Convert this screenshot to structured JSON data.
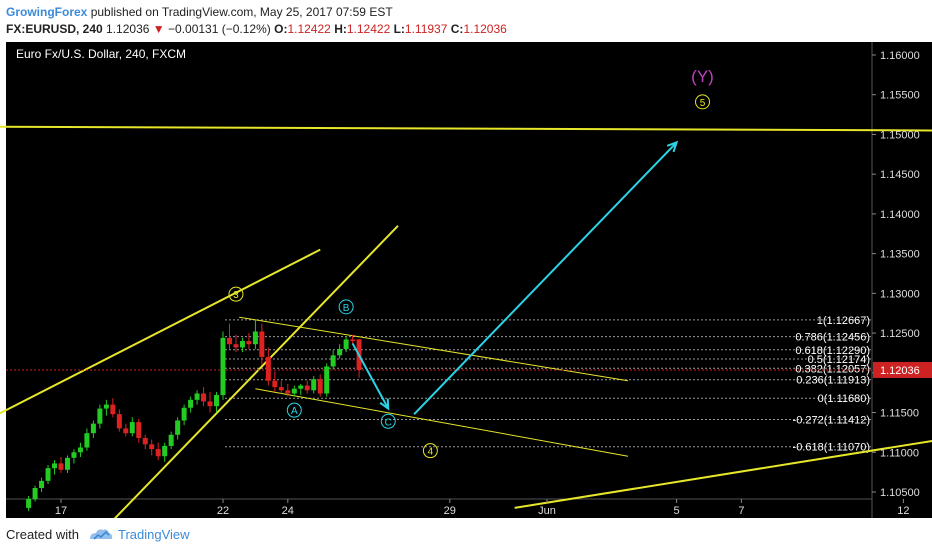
{
  "header": {
    "author": "GrowingForex",
    "published_text": "published on TradingView.com, May 25, 2017 07:59 EST",
    "symbol": "FX:EURUSD, 240",
    "last": "1.12036",
    "arrow": "▼",
    "change": "−0.00131 (−0.12%)",
    "o_label": "O:",
    "o_value": "1.12422",
    "h_label": "H:",
    "h_value": "1.12422",
    "l_label": "L:",
    "l_value": "1.11937",
    "c_label": "C:",
    "c_value": "1.12036"
  },
  "footer": {
    "created_with": "Created with",
    "brand": "TradingView"
  },
  "colors": {
    "background": "#000000",
    "up": "#22cc22",
    "down": "#dd2222",
    "trend": "#e6e62a",
    "arrow": "#2ad4e6",
    "wave_y": "#c040c0",
    "price_tag": "#cc2222"
  },
  "chart_data": {
    "type": "candlestick",
    "title": "Euro Fx/U.S. Dollar, 240, FXCM",
    "y_ticks": [
      "1.16000",
      "1.15500",
      "1.15000",
      "1.14500",
      "1.14000",
      "1.13500",
      "1.13000",
      "1.12500",
      "1.12000",
      "1.11500",
      "1.11000",
      "1.10500"
    ],
    "ylim": [
      1.1025,
      1.1625
    ],
    "x_ticks": [
      {
        "label": "17",
        "day": 0
      },
      {
        "label": "22",
        "day": 5
      },
      {
        "label": "24",
        "day": 7
      },
      {
        "label": "29",
        "day": 12
      },
      {
        "label": "Jun",
        "day": 15
      },
      {
        "label": "5",
        "day": 19
      },
      {
        "label": "7",
        "day": 21
      },
      {
        "label": "12",
        "day": 26
      }
    ],
    "last_price": "1.12036",
    "candles": [
      {
        "t": -1.0,
        "o": 1.103,
        "h": 1.1045,
        "l": 1.1026,
        "c": 1.1041
      },
      {
        "t": -0.8,
        "o": 1.1041,
        "h": 1.1058,
        "l": 1.1038,
        "c": 1.1055
      },
      {
        "t": -0.6,
        "o": 1.1055,
        "h": 1.1068,
        "l": 1.105,
        "c": 1.1064
      },
      {
        "t": -0.4,
        "o": 1.1064,
        "h": 1.1084,
        "l": 1.106,
        "c": 1.108
      },
      {
        "t": -0.2,
        "o": 1.108,
        "h": 1.109,
        "l": 1.1072,
        "c": 1.1086
      },
      {
        "t": 0.0,
        "o": 1.1086,
        "h": 1.1094,
        "l": 1.1074,
        "c": 1.1078
      },
      {
        "t": 0.2,
        "o": 1.1078,
        "h": 1.1096,
        "l": 1.1074,
        "c": 1.1093
      },
      {
        "t": 0.4,
        "o": 1.1093,
        "h": 1.1104,
        "l": 1.1086,
        "c": 1.11
      },
      {
        "t": 0.6,
        "o": 1.11,
        "h": 1.1112,
        "l": 1.1094,
        "c": 1.1106
      },
      {
        "t": 0.8,
        "o": 1.1106,
        "h": 1.113,
        "l": 1.1102,
        "c": 1.1124
      },
      {
        "t": 1.0,
        "o": 1.1124,
        "h": 1.114,
        "l": 1.1118,
        "c": 1.1136
      },
      {
        "t": 1.2,
        "o": 1.1136,
        "h": 1.116,
        "l": 1.113,
        "c": 1.1155
      },
      {
        "t": 1.4,
        "o": 1.1155,
        "h": 1.1166,
        "l": 1.1146,
        "c": 1.116
      },
      {
        "t": 1.6,
        "o": 1.116,
        "h": 1.1168,
        "l": 1.1144,
        "c": 1.1148
      },
      {
        "t": 1.8,
        "o": 1.1148,
        "h": 1.1154,
        "l": 1.1126,
        "c": 1.113
      },
      {
        "t": 2.0,
        "o": 1.113,
        "h": 1.1136,
        "l": 1.112,
        "c": 1.1124
      },
      {
        "t": 2.2,
        "o": 1.1124,
        "h": 1.1144,
        "l": 1.112,
        "c": 1.1138
      },
      {
        "t": 2.4,
        "o": 1.1138,
        "h": 1.1142,
        "l": 1.1112,
        "c": 1.1118
      },
      {
        "t": 2.6,
        "o": 1.1118,
        "h": 1.1122,
        "l": 1.1104,
        "c": 1.111
      },
      {
        "t": 2.8,
        "o": 1.111,
        "h": 1.1116,
        "l": 1.1096,
        "c": 1.1104
      },
      {
        "t": 3.0,
        "o": 1.1104,
        "h": 1.1112,
        "l": 1.109,
        "c": 1.1095
      },
      {
        "t": 3.2,
        "o": 1.1095,
        "h": 1.1112,
        "l": 1.1088,
        "c": 1.1108
      },
      {
        "t": 3.4,
        "o": 1.1108,
        "h": 1.1126,
        "l": 1.1104,
        "c": 1.1122
      },
      {
        "t": 3.6,
        "o": 1.1122,
        "h": 1.1144,
        "l": 1.1116,
        "c": 1.114
      },
      {
        "t": 3.8,
        "o": 1.114,
        "h": 1.116,
        "l": 1.1134,
        "c": 1.1156
      },
      {
        "t": 4.0,
        "o": 1.1156,
        "h": 1.117,
        "l": 1.115,
        "c": 1.1166
      },
      {
        "t": 4.2,
        "o": 1.1166,
        "h": 1.1178,
        "l": 1.116,
        "c": 1.1174
      },
      {
        "t": 4.4,
        "o": 1.1174,
        "h": 1.1182,
        "l": 1.1158,
        "c": 1.1164
      },
      {
        "t": 4.6,
        "o": 1.1164,
        "h": 1.1176,
        "l": 1.115,
        "c": 1.1158
      },
      {
        "t": 4.8,
        "o": 1.1158,
        "h": 1.1176,
        "l": 1.115,
        "c": 1.1172
      },
      {
        "t": 5.0,
        "o": 1.1172,
        "h": 1.1252,
        "l": 1.1166,
        "c": 1.1244
      },
      {
        "t": 5.2,
        "o": 1.1244,
        "h": 1.1262,
        "l": 1.123,
        "c": 1.1236
      },
      {
        "t": 5.4,
        "o": 1.1236,
        "h": 1.1248,
        "l": 1.1226,
        "c": 1.1232
      },
      {
        "t": 5.6,
        "o": 1.1232,
        "h": 1.1244,
        "l": 1.1226,
        "c": 1.124
      },
      {
        "t": 5.8,
        "o": 1.124,
        "h": 1.125,
        "l": 1.123,
        "c": 1.1236
      },
      {
        "t": 6.0,
        "o": 1.1236,
        "h": 1.1266,
        "l": 1.123,
        "c": 1.1252
      },
      {
        "t": 6.2,
        "o": 1.1252,
        "h": 1.1262,
        "l": 1.121,
        "c": 1.122
      },
      {
        "t": 6.4,
        "o": 1.122,
        "h": 1.1232,
        "l": 1.1184,
        "c": 1.119
      },
      {
        "t": 6.6,
        "o": 1.119,
        "h": 1.1202,
        "l": 1.1176,
        "c": 1.1182
      },
      {
        "t": 6.8,
        "o": 1.1182,
        "h": 1.119,
        "l": 1.1174,
        "c": 1.1178
      },
      {
        "t": 7.0,
        "o": 1.1178,
        "h": 1.1186,
        "l": 1.117,
        "c": 1.1174
      },
      {
        "t": 7.2,
        "o": 1.1174,
        "h": 1.1184,
        "l": 1.117,
        "c": 1.118
      },
      {
        "t": 7.4,
        "o": 1.118,
        "h": 1.1186,
        "l": 1.1172,
        "c": 1.1184
      },
      {
        "t": 7.6,
        "o": 1.1184,
        "h": 1.119,
        "l": 1.1174,
        "c": 1.1178
      },
      {
        "t": 7.8,
        "o": 1.1178,
        "h": 1.1196,
        "l": 1.1174,
        "c": 1.1192
      },
      {
        "t": 8.0,
        "o": 1.1192,
        "h": 1.1198,
        "l": 1.117,
        "c": 1.1174
      },
      {
        "t": 8.2,
        "o": 1.1174,
        "h": 1.1212,
        "l": 1.117,
        "c": 1.1208
      },
      {
        "t": 8.4,
        "o": 1.1208,
        "h": 1.1228,
        "l": 1.1204,
        "c": 1.1222
      },
      {
        "t": 8.6,
        "o": 1.1222,
        "h": 1.1236,
        "l": 1.1218,
        "c": 1.123
      },
      {
        "t": 8.8,
        "o": 1.123,
        "h": 1.1246,
        "l": 1.1226,
        "c": 1.1242
      },
      {
        "t": 9.0,
        "o": 1.1242,
        "h": 1.1248,
        "l": 1.1236,
        "c": 1.124
      },
      {
        "t": 9.2,
        "o": 1.12422,
        "h": 1.12422,
        "l": 1.11937,
        "c": 1.12036
      }
    ],
    "fib_levels": [
      {
        "label": "1(1.12667)",
        "price": 1.12667
      },
      {
        "label": "0.786(1.12456)",
        "price": 1.12456
      },
      {
        "label": "0.618(1.12290)",
        "price": 1.1229
      },
      {
        "label": "0.5(1.12174)",
        "price": 1.12174
      },
      {
        "label": "0.382(1.12057)",
        "price": 1.12057
      },
      {
        "label": "0.236(1.11913)",
        "price": 1.11913
      },
      {
        "label": "0(1.11680)",
        "price": 1.1168
      },
      {
        "label": "-0.272(1.11412)",
        "price": 1.11412
      },
      {
        "label": "-0.618(1.11070)",
        "price": 1.1107
      }
    ],
    "trend_lines": [
      {
        "name": "resistance-horizontal",
        "t1": -4.0,
        "p1": 1.151,
        "t2": 27.0,
        "p2": 1.1505
      },
      {
        "name": "channel-upper",
        "t1": -4.0,
        "p1": 1.1105,
        "t2": 8.0,
        "p2": 1.1355
      },
      {
        "name": "channel-lower",
        "t1": 1.5,
        "p1": 1.101,
        "t2": 10.4,
        "p2": 1.1385
      },
      {
        "name": "flag-top",
        "t1": 5.5,
        "p1": 1.127,
        "t2": 17.5,
        "p2": 1.119
      },
      {
        "name": "flag-bottom",
        "t1": 6.0,
        "p1": 1.118,
        "t2": 17.5,
        "p2": 1.1095
      },
      {
        "name": "support-rising",
        "t1": 14.0,
        "p1": 1.103,
        "t2": 27.0,
        "p2": 1.1115
      }
    ],
    "projection_arrows": [
      {
        "name": "down-arrow",
        "points": [
          [
            9.0,
            1.1237
          ],
          [
            10.1,
            1.1155
          ]
        ]
      },
      {
        "name": "up-arrow",
        "points": [
          [
            10.9,
            1.1148
          ],
          [
            19.0,
            1.149
          ]
        ]
      }
    ],
    "wave_labels": [
      {
        "label": "3",
        "t": 5.4,
        "p": 1.1299,
        "color": "#e6e62a"
      },
      {
        "label": "B",
        "t": 8.8,
        "p": 1.1283,
        "color": "#2ad4e6"
      },
      {
        "label": "A",
        "t": 7.2,
        "p": 1.1153,
        "color": "#2ad4e6"
      },
      {
        "label": "C",
        "t": 10.1,
        "p": 1.1139,
        "color": "#2ad4e6"
      },
      {
        "label": "4",
        "t": 11.4,
        "p": 1.1102,
        "color": "#e6e62a"
      },
      {
        "label": "5",
        "t": 19.8,
        "p": 1.1541,
        "color": "#e6e62a"
      },
      {
        "label": "(Y)",
        "t": 19.8,
        "p": 1.1575,
        "color": "#c040c0"
      }
    ]
  }
}
